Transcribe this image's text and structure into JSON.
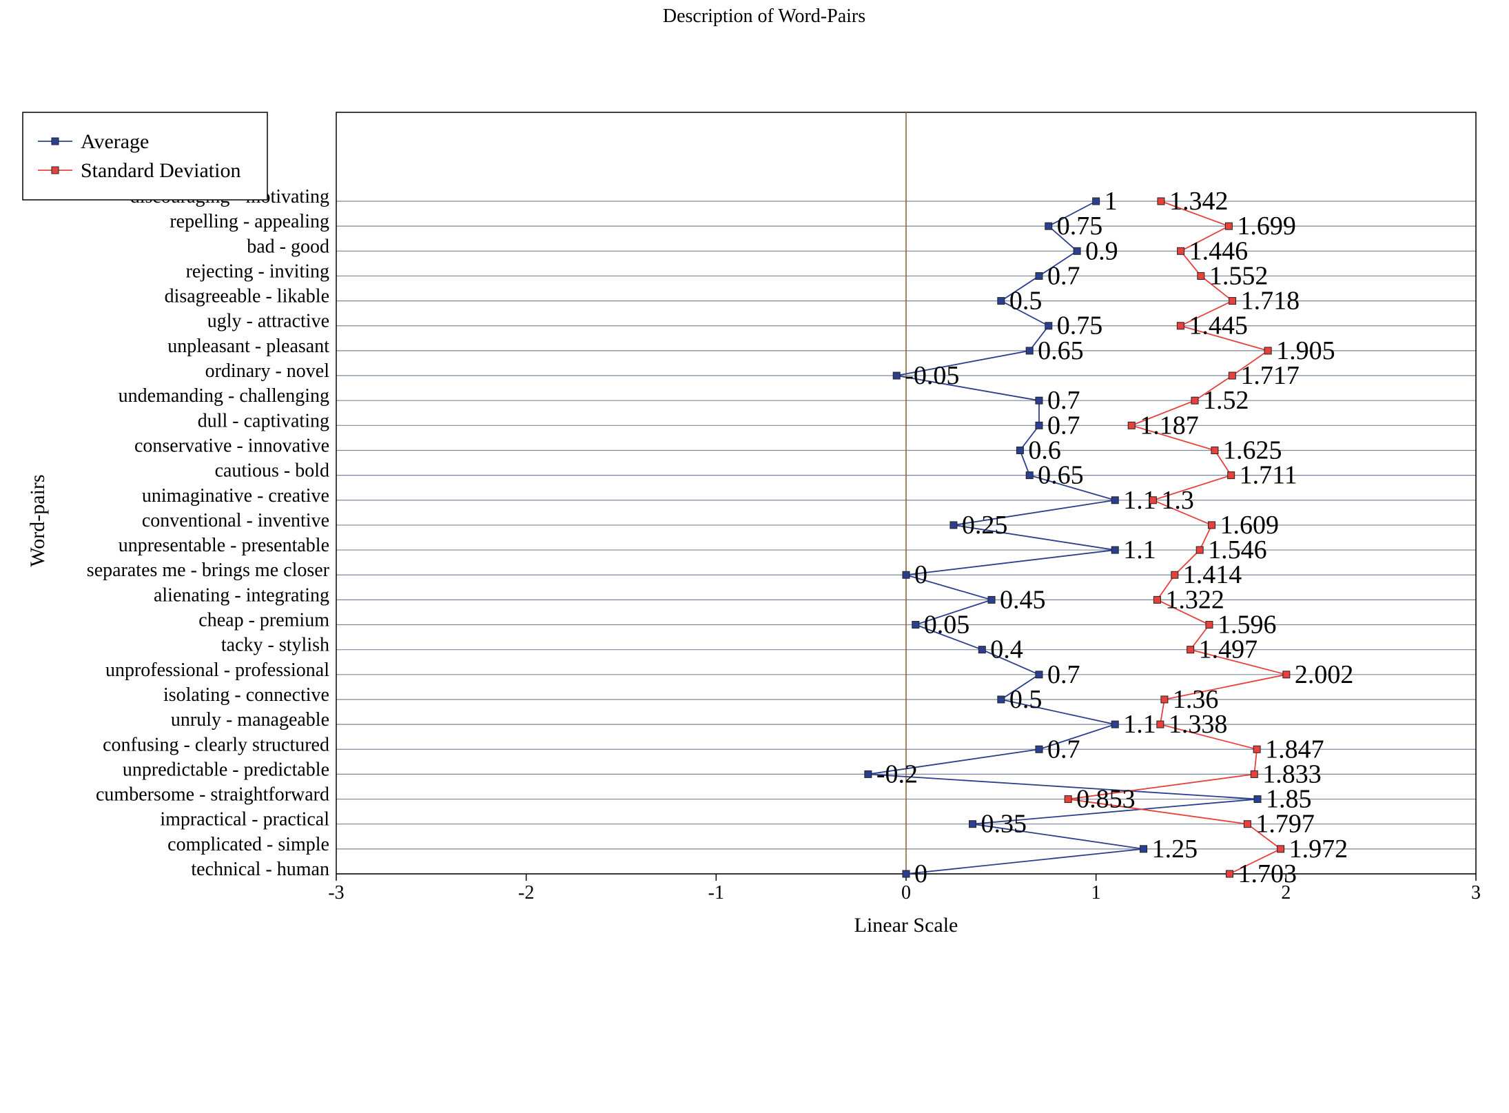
{
  "chart_data": {
    "type": "line",
    "orientation": "horizontal",
    "title": "Description of Word-Pairs",
    "xlabel": "Linear Scale",
    "ylabel": "Word-pairs",
    "xlim": [
      -3,
      3
    ],
    "xticks": [
      "-3",
      "-2",
      "-1",
      "0",
      "1",
      "2",
      "3"
    ],
    "legend_position": "top-left",
    "grid": "horizontal",
    "categories": [
      "discouraging - motivating",
      "repelling - appealing",
      "bad -  good",
      "rejecting - inviting",
      "disagreeable - likable",
      "ugly - attractive",
      "unpleasant - pleasant",
      "ordinary - novel",
      "undemanding - challenging",
      "dull - captivating",
      "conservative - innovative",
      "cautious - bold",
      "unimaginative - creative",
      "conventional - inventive",
      "unpresentable - presentable",
      "separates me - brings me closer",
      "alienating - integrating",
      "cheap - premium",
      "tacky - stylish",
      "unprofessional - professional",
      "isolating - connective",
      "unruly - manageable",
      "confusing - clearly structured",
      "unpredictable -  predictable",
      "cumbersome - straightforward",
      "impractical - practical",
      "complicated - simple",
      "technical - human"
    ],
    "series": [
      {
        "name": "Average",
        "color": "#2b3f8f",
        "values": [
          1,
          0.75,
          0.9,
          0.7,
          0.5,
          0.75,
          0.65,
          -0.05,
          0.7,
          0.7,
          0.6,
          0.65,
          1.1,
          0.25,
          1.1,
          0,
          0.45,
          0.05,
          0.4,
          0.7,
          0.5,
          1.1,
          0.7,
          -0.2,
          1.85,
          0.35,
          1.25,
          0
        ],
        "labels": [
          "1",
          "0.75",
          "0.9",
          "0.7",
          "0.5",
          "0.75",
          "0.65",
          "-0.05",
          "0.7",
          "0.7",
          "0.6",
          "0.65",
          "1.1",
          "0.25",
          "1.1",
          "0",
          "0.45",
          "0.05",
          "0.4",
          "0.7",
          "0.5",
          "1.1",
          "0.7",
          "-0.2",
          "1.85",
          "0.35",
          "1.25",
          "0"
        ]
      },
      {
        "name": "Standard Deviation",
        "color": "#e8403a",
        "values": [
          1.342,
          1.699,
          1.446,
          1.552,
          1.718,
          1.445,
          1.905,
          1.717,
          1.52,
          1.187,
          1.625,
          1.711,
          1.3,
          1.609,
          1.546,
          1.414,
          1.322,
          1.596,
          1.497,
          2.002,
          1.36,
          1.338,
          1.847,
          1.833,
          0.853,
          1.797,
          1.972,
          1.703
        ],
        "labels": [
          "1.342",
          "1.699",
          "1.446",
          "1.552",
          "1.718",
          "1.445",
          "1.905",
          "1.717",
          "1.52",
          "1.187",
          "1.625",
          "1.711",
          "1.3",
          "1.609",
          "1.546",
          "1.414",
          "1.322",
          "1.596",
          "1.497",
          "2.002",
          "1.36",
          "1.338",
          "1.847",
          "1.833",
          "0.853",
          "1.797",
          "1.972",
          "1.703"
        ]
      }
    ]
  }
}
